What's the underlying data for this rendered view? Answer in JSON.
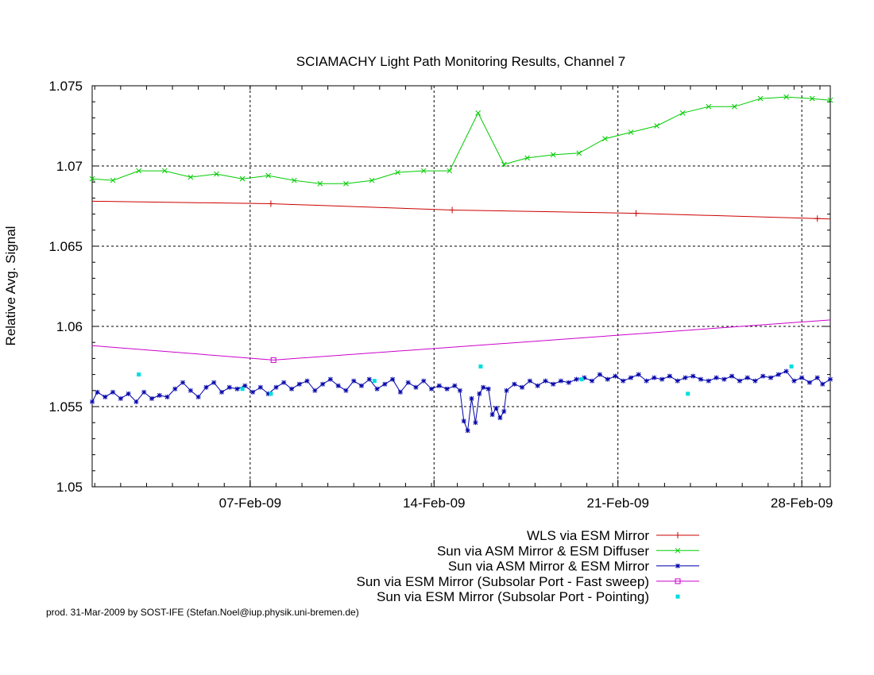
{
  "chart_data": {
    "type": "line",
    "title": "SCIAMACHY Light Path Monitoring Results, Channel 7",
    "ylabel": "Relative Avg. Signal",
    "xlabel": "",
    "x_range_days": [
      0,
      28.5
    ],
    "x_reference_note": "x in days after 31-Jan-09 00:00",
    "xticks": [
      {
        "x": 6.1,
        "label": "07-Feb-09"
      },
      {
        "x": 13.2,
        "label": "14-Feb-09"
      },
      {
        "x": 20.3,
        "label": "21-Feb-09"
      },
      {
        "x": 27.4,
        "label": "28-Feb-09"
      }
    ],
    "ylim": [
      1.05,
      1.075
    ],
    "yticks": [
      {
        "v": 1.05,
        "label": "1.05"
      },
      {
        "v": 1.055,
        "label": "1.055"
      },
      {
        "v": 1.06,
        "label": "1.06"
      },
      {
        "v": 1.065,
        "label": "1.065"
      },
      {
        "v": 1.07,
        "label": "1.07"
      },
      {
        "v": 1.075,
        "label": "1.075"
      }
    ],
    "grid": true,
    "legend_position": "bottom-right",
    "series": [
      {
        "name": "WLS via ESM Mirror",
        "color": "#cc0000",
        "marker": "plus",
        "points": [
          [
            0,
            1.0678
          ],
          [
            6.9,
            1.06765
          ],
          [
            13.9,
            1.06725
          ],
          [
            21.0,
            1.06705
          ],
          [
            28.5,
            1.0667
          ]
        ],
        "markers_at": [
          6.9,
          13.9,
          21.0,
          28.0
        ]
      },
      {
        "name": "Sun via ASM Mirror & ESM Diffuser",
        "color": "#00cc00",
        "marker": "x",
        "points": [
          [
            0,
            1.0692
          ],
          [
            0.8,
            1.0691
          ],
          [
            1.8,
            1.0697
          ],
          [
            2.8,
            1.0697
          ],
          [
            3.8,
            1.0693
          ],
          [
            4.8,
            1.0695
          ],
          [
            5.8,
            1.0692
          ],
          [
            6.8,
            1.0694
          ],
          [
            7.8,
            1.0691
          ],
          [
            8.8,
            1.0689
          ],
          [
            9.8,
            1.0689
          ],
          [
            10.8,
            1.0691
          ],
          [
            11.8,
            1.0696
          ],
          [
            12.8,
            1.0697
          ],
          [
            13.8,
            1.0697
          ],
          [
            14.9,
            1.0733
          ],
          [
            15.9,
            1.0701
          ],
          [
            16.8,
            1.0705
          ],
          [
            17.8,
            1.0707
          ],
          [
            18.8,
            1.0708
          ],
          [
            19.8,
            1.0717
          ],
          [
            20.8,
            1.0721
          ],
          [
            21.8,
            1.0725
          ],
          [
            22.8,
            1.0733
          ],
          [
            23.8,
            1.0737
          ],
          [
            24.8,
            1.0737
          ],
          [
            25.8,
            1.0742
          ],
          [
            26.8,
            1.0743
          ],
          [
            27.8,
            1.0742
          ],
          [
            28.5,
            1.0741
          ]
        ]
      },
      {
        "name": "Sun via ASM Mirror & ESM Mirror",
        "color": "#0000aa",
        "marker": "star",
        "points": [
          [
            0,
            1.0553
          ],
          [
            0.2,
            1.0559
          ],
          [
            0.5,
            1.0556
          ],
          [
            0.8,
            1.0559
          ],
          [
            1.1,
            1.0555
          ],
          [
            1.4,
            1.0558
          ],
          [
            1.7,
            1.0553
          ],
          [
            2.0,
            1.0559
          ],
          [
            2.3,
            1.0555
          ],
          [
            2.6,
            1.0557
          ],
          [
            2.9,
            1.0556
          ],
          [
            3.2,
            1.0561
          ],
          [
            3.5,
            1.0565
          ],
          [
            3.8,
            1.056
          ],
          [
            4.1,
            1.0556
          ],
          [
            4.4,
            1.0562
          ],
          [
            4.7,
            1.0565
          ],
          [
            5.0,
            1.0559
          ],
          [
            5.3,
            1.0562
          ],
          [
            5.6,
            1.0561
          ],
          [
            5.9,
            1.0563
          ],
          [
            6.2,
            1.0559
          ],
          [
            6.5,
            1.0562
          ],
          [
            6.8,
            1.0558
          ],
          [
            7.1,
            1.0562
          ],
          [
            7.4,
            1.0565
          ],
          [
            7.7,
            1.0561
          ],
          [
            8.0,
            1.0564
          ],
          [
            8.3,
            1.0566
          ],
          [
            8.6,
            1.056
          ],
          [
            8.9,
            1.0564
          ],
          [
            9.2,
            1.0567
          ],
          [
            9.5,
            1.0563
          ],
          [
            9.8,
            1.056
          ],
          [
            10.1,
            1.0566
          ],
          [
            10.4,
            1.0563
          ],
          [
            10.7,
            1.0567
          ],
          [
            11.0,
            1.0561
          ],
          [
            11.3,
            1.0564
          ],
          [
            11.6,
            1.0567
          ],
          [
            11.9,
            1.0559
          ],
          [
            12.2,
            1.0565
          ],
          [
            12.5,
            1.0562
          ],
          [
            12.8,
            1.0566
          ],
          [
            13.1,
            1.0561
          ],
          [
            13.4,
            1.0563
          ],
          [
            13.7,
            1.0561
          ],
          [
            14.0,
            1.0563
          ],
          [
            14.2,
            1.056
          ],
          [
            14.35,
            1.0541
          ],
          [
            14.5,
            1.0535
          ],
          [
            14.65,
            1.0555
          ],
          [
            14.8,
            1.054
          ],
          [
            14.95,
            1.0558
          ],
          [
            15.1,
            1.0562
          ],
          [
            15.3,
            1.0561
          ],
          [
            15.45,
            1.0545
          ],
          [
            15.6,
            1.0549
          ],
          [
            15.75,
            1.0543
          ],
          [
            15.9,
            1.0547
          ],
          [
            16.0,
            1.056
          ],
          [
            16.3,
            1.0564
          ],
          [
            16.6,
            1.0562
          ],
          [
            16.9,
            1.0566
          ],
          [
            17.2,
            1.0563
          ],
          [
            17.5,
            1.0566
          ],
          [
            17.8,
            1.0564
          ],
          [
            18.1,
            1.0566
          ],
          [
            18.4,
            1.0565
          ],
          [
            18.7,
            1.0567
          ],
          [
            19.0,
            1.0568
          ],
          [
            19.3,
            1.0566
          ],
          [
            19.6,
            1.057
          ],
          [
            19.9,
            1.0567
          ],
          [
            20.2,
            1.0569
          ],
          [
            20.5,
            1.0566
          ],
          [
            20.8,
            1.0568
          ],
          [
            21.1,
            1.057
          ],
          [
            21.4,
            1.0566
          ],
          [
            21.7,
            1.0568
          ],
          [
            22.0,
            1.0567
          ],
          [
            22.3,
            1.0569
          ],
          [
            22.6,
            1.0566
          ],
          [
            22.9,
            1.0568
          ],
          [
            23.2,
            1.0569
          ],
          [
            23.5,
            1.0567
          ],
          [
            23.8,
            1.0566
          ],
          [
            24.1,
            1.0568
          ],
          [
            24.4,
            1.0567
          ],
          [
            24.7,
            1.0569
          ],
          [
            25.0,
            1.0566
          ],
          [
            25.3,
            1.0568
          ],
          [
            25.6,
            1.0566
          ],
          [
            25.9,
            1.0569
          ],
          [
            26.2,
            1.0568
          ],
          [
            26.5,
            1.057
          ],
          [
            26.8,
            1.0572
          ],
          [
            27.1,
            1.0566
          ],
          [
            27.4,
            1.0568
          ],
          [
            27.7,
            1.0565
          ],
          [
            28.0,
            1.0568
          ],
          [
            28.2,
            1.0564
          ],
          [
            28.5,
            1.0567
          ]
        ]
      },
      {
        "name": "Sun via ESM Mirror (Subsolar Port - Fast sweep)",
        "color": "#cc00cc",
        "marker": "square",
        "points": [
          [
            0,
            1.0588
          ],
          [
            7.0,
            1.0579
          ],
          [
            28.5,
            1.0604
          ]
        ],
        "markers_at": [
          7.0
        ]
      },
      {
        "name": "Sun via ESM Mirror (Subsolar Port - Pointing)",
        "color": "#00dddd",
        "marker": "dot",
        "points": [
          [
            1.8,
            1.057
          ],
          [
            5.8,
            1.0561
          ],
          [
            6.9,
            1.0558
          ],
          [
            10.9,
            1.0566
          ],
          [
            15.0,
            1.0575
          ],
          [
            18.9,
            1.0567
          ],
          [
            23.0,
            1.0558
          ],
          [
            27.0,
            1.0575
          ]
        ]
      }
    ]
  },
  "footer": "prod. 31-Mar-2009 by SOST-IFE (Stefan.Noel@iup.physik.uni-bremen.de)"
}
